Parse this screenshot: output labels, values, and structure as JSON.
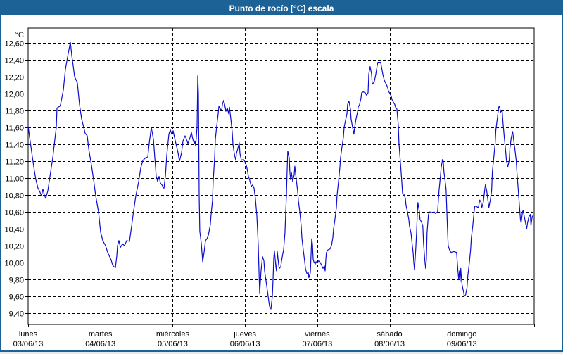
{
  "window": {
    "title": "Punto de rocío [°C] escala"
  },
  "colors": {
    "titlebar_bg": "#1d6296",
    "titlebar_text": "#ffffff",
    "frame_border": "#1d6296",
    "plot_border": "#000000",
    "grid": "#000000",
    "line": "#0d0dce",
    "label": "#000000",
    "background": "#ffffff"
  },
  "chart_data": {
    "type": "line",
    "title": "Punto de rocío [°C] escala",
    "unit_label": "°C",
    "grid": true,
    "x_span_days": 7,
    "ylim": [
      9.27,
      12.78
    ],
    "y_tick_values": [
      12.6,
      12.4,
      12.2,
      12.0,
      11.8,
      11.6,
      11.4,
      11.2,
      11.0,
      10.8,
      10.6,
      10.4,
      10.2,
      10.0,
      9.8,
      9.6,
      9.4
    ],
    "y_tick_labels": [
      "12,60",
      "12,40",
      "12,20",
      "12,00",
      "11,80",
      "11,60",
      "11,40",
      "11,20",
      "11,00",
      "10,80",
      "10,60",
      "10,40",
      "10,20",
      "10,00",
      "9,80",
      "9,60",
      "9,40"
    ],
    "x_categories": [
      {
        "day": "lunes",
        "date": "03/06/13"
      },
      {
        "day": "martes",
        "date": "04/06/13"
      },
      {
        "day": "miércoles",
        "date": "05/06/13"
      },
      {
        "day": "jueves",
        "date": "06/06/13"
      },
      {
        "day": "viernes",
        "date": "07/06/13"
      },
      {
        "day": "sábado",
        "date": "08/06/13"
      },
      {
        "day": "domingo",
        "date": "09/06/13"
      }
    ],
    "points": [
      [
        0.0,
        11.62
      ],
      [
        0.01,
        11.55
      ],
      [
        0.029,
        11.43
      ],
      [
        0.058,
        11.25
      ],
      [
        0.088,
        11.08
      ],
      [
        0.107,
        10.98
      ],
      [
        0.136,
        10.88
      ],
      [
        0.156,
        10.85
      ],
      [
        0.185,
        10.79
      ],
      [
        0.204,
        10.87
      ],
      [
        0.224,
        10.8
      ],
      [
        0.243,
        10.76
      ],
      [
        0.273,
        10.85
      ],
      [
        0.302,
        11.02
      ],
      [
        0.341,
        11.24
      ],
      [
        0.37,
        11.46
      ],
      [
        0.389,
        11.6
      ],
      [
        0.399,
        11.83
      ],
      [
        0.438,
        11.85
      ],
      [
        0.448,
        11.87
      ],
      [
        0.487,
        12.04
      ],
      [
        0.516,
        12.29
      ],
      [
        0.545,
        12.43
      ],
      [
        0.565,
        12.52
      ],
      [
        0.584,
        12.61
      ],
      [
        0.604,
        12.45
      ],
      [
        0.623,
        12.33
      ],
      [
        0.643,
        12.2
      ],
      [
        0.681,
        12.13
      ],
      [
        0.711,
        11.87
      ],
      [
        0.74,
        11.7
      ],
      [
        0.769,
        11.6
      ],
      [
        0.789,
        11.53
      ],
      [
        0.818,
        11.5
      ],
      [
        0.837,
        11.35
      ],
      [
        0.876,
        11.15
      ],
      [
        0.905,
        10.98
      ],
      [
        0.935,
        10.79
      ],
      [
        0.974,
        10.6
      ],
      [
        1.003,
        10.36
      ],
      [
        1.032,
        10.26
      ],
      [
        1.071,
        10.2
      ],
      [
        1.1,
        10.12
      ],
      [
        1.149,
        10.03
      ],
      [
        1.168,
        9.97
      ],
      [
        1.188,
        9.95
      ],
      [
        1.207,
        9.94
      ],
      [
        1.227,
        10.08
      ],
      [
        1.236,
        10.2
      ],
      [
        1.256,
        10.26
      ],
      [
        1.276,
        10.18
      ],
      [
        1.305,
        10.22
      ],
      [
        1.334,
        10.2
      ],
      [
        1.363,
        10.26
      ],
      [
        1.402,
        10.25
      ],
      [
        1.431,
        10.43
      ],
      [
        1.46,
        10.62
      ],
      [
        1.49,
        10.79
      ],
      [
        1.529,
        10.96
      ],
      [
        1.558,
        11.12
      ],
      [
        1.587,
        11.21
      ],
      [
        1.626,
        11.24
      ],
      [
        1.655,
        11.25
      ],
      [
        1.675,
        11.41
      ],
      [
        1.704,
        11.6
      ],
      [
        1.733,
        11.46
      ],
      [
        1.752,
        11.24
      ],
      [
        1.772,
        11.02
      ],
      [
        1.791,
        10.96
      ],
      [
        1.811,
        11.02
      ],
      [
        1.83,
        10.94
      ],
      [
        1.85,
        10.92
      ],
      [
        1.879,
        10.88
      ],
      [
        1.898,
        11.02
      ],
      [
        1.918,
        11.27
      ],
      [
        1.947,
        11.52
      ],
      [
        1.967,
        11.57
      ],
      [
        1.986,
        11.52
      ],
      [
        2.006,
        11.56
      ],
      [
        2.025,
        11.48
      ],
      [
        2.044,
        11.41
      ],
      [
        2.074,
        11.3
      ],
      [
        2.093,
        11.2
      ],
      [
        2.122,
        11.3
      ],
      [
        2.142,
        11.44
      ],
      [
        2.171,
        11.5
      ],
      [
        2.19,
        11.46
      ],
      [
        2.21,
        11.41
      ],
      [
        2.239,
        11.48
      ],
      [
        2.259,
        11.54
      ],
      [
        2.278,
        11.46
      ],
      [
        2.298,
        11.41
      ],
      [
        2.307,
        11.44
      ],
      [
        2.317,
        11.38
      ],
      [
        2.337,
        11.6
      ],
      [
        2.346,
        12.21
      ],
      [
        2.356,
        12.0
      ],
      [
        2.366,
        10.8
      ],
      [
        2.375,
        10.37
      ],
      [
        2.395,
        10.23
      ],
      [
        2.414,
        10.01
      ],
      [
        2.434,
        10.12
      ],
      [
        2.453,
        10.26
      ],
      [
        2.473,
        10.28
      ],
      [
        2.492,
        10.32
      ],
      [
        2.521,
        10.45
      ],
      [
        2.531,
        10.57
      ],
      [
        2.551,
        10.74
      ],
      [
        2.56,
        10.96
      ],
      [
        2.58,
        11.24
      ],
      [
        2.59,
        11.46
      ],
      [
        2.609,
        11.62
      ],
      [
        2.629,
        11.76
      ],
      [
        2.638,
        11.85
      ],
      [
        2.658,
        11.82
      ],
      [
        2.677,
        11.8
      ],
      [
        2.687,
        11.87
      ],
      [
        2.706,
        11.92
      ],
      [
        2.726,
        11.84
      ],
      [
        2.736,
        11.79
      ],
      [
        2.755,
        11.83
      ],
      [
        2.775,
        11.76
      ],
      [
        2.784,
        11.84
      ],
      [
        2.804,
        11.7
      ],
      [
        2.823,
        11.54
      ],
      [
        2.833,
        11.4
      ],
      [
        2.852,
        11.29
      ],
      [
        2.872,
        11.21
      ],
      [
        2.881,
        11.29
      ],
      [
        2.901,
        11.35
      ],
      [
        2.92,
        11.42
      ],
      [
        2.93,
        11.29
      ],
      [
        2.95,
        11.21
      ],
      [
        2.979,
        11.22
      ],
      [
        3.008,
        11.18
      ],
      [
        3.027,
        11.12
      ],
      [
        3.047,
        11.02
      ],
      [
        3.067,
        10.97
      ],
      [
        3.086,
        10.9
      ],
      [
        3.106,
        10.92
      ],
      [
        3.125,
        10.88
      ],
      [
        3.145,
        10.75
      ],
      [
        3.164,
        10.55
      ],
      [
        3.184,
        10.2
      ],
      [
        3.193,
        9.9
      ],
      [
        3.203,
        9.63
      ],
      [
        3.222,
        9.9
      ],
      [
        3.242,
        10.07
      ],
      [
        3.261,
        10.02
      ],
      [
        3.271,
        9.9
      ],
      [
        3.29,
        9.79
      ],
      [
        3.32,
        9.6
      ],
      [
        3.339,
        9.48
      ],
      [
        3.359,
        9.45
      ],
      [
        3.378,
        9.6
      ],
      [
        3.388,
        9.8
      ],
      [
        3.398,
        10.05
      ],
      [
        3.407,
        10.14
      ],
      [
        3.427,
        9.95
      ],
      [
        3.436,
        9.9
      ],
      [
        3.446,
        10.13
      ],
      [
        3.466,
        9.97
      ],
      [
        3.475,
        9.93
      ],
      [
        3.495,
        9.95
      ],
      [
        3.504,
        10.01
      ],
      [
        3.524,
        10.11
      ],
      [
        3.534,
        10.15
      ],
      [
        3.553,
        10.35
      ],
      [
        3.563,
        10.6
      ],
      [
        3.573,
        10.8
      ],
      [
        3.582,
        11.07
      ],
      [
        3.592,
        11.32
      ],
      [
        3.612,
        11.24
      ],
      [
        3.621,
        11.07
      ],
      [
        3.631,
        10.98
      ],
      [
        3.641,
        11.07
      ],
      [
        3.66,
        10.96
      ],
      [
        3.68,
        11.04
      ],
      [
        3.689,
        11.14
      ],
      [
        3.709,
        10.98
      ],
      [
        3.728,
        10.85
      ],
      [
        3.738,
        10.74
      ],
      [
        3.758,
        10.6
      ],
      [
        3.777,
        10.43
      ],
      [
        3.787,
        10.29
      ],
      [
        3.806,
        10.15
      ],
      [
        3.826,
        10.01
      ],
      [
        3.836,
        9.93
      ],
      [
        3.855,
        9.87
      ],
      [
        3.875,
        9.88
      ],
      [
        3.884,
        9.82
      ],
      [
        3.904,
        9.88
      ],
      [
        3.923,
        10.28
      ],
      [
        3.933,
        10.22
      ],
      [
        3.943,
        10.04
      ],
      [
        3.952,
        10.01
      ],
      [
        3.972,
        9.98
      ],
      [
        3.981,
        10.01
      ],
      [
        4.001,
        10.0
      ],
      [
        4.02,
        10.02
      ],
      [
        4.04,
        10.0
      ],
      [
        4.059,
        9.97
      ],
      [
        4.079,
        9.93
      ],
      [
        4.098,
        9.96
      ],
      [
        4.108,
        9.9
      ],
      [
        4.118,
        10.04
      ],
      [
        4.127,
        10.12
      ],
      [
        4.147,
        10.15
      ],
      [
        4.176,
        10.16
      ],
      [
        4.196,
        10.2
      ],
      [
        4.215,
        10.29
      ],
      [
        4.225,
        10.4
      ],
      [
        4.244,
        10.51
      ],
      [
        4.264,
        10.65
      ],
      [
        4.273,
        10.79
      ],
      [
        4.293,
        10.96
      ],
      [
        4.312,
        11.12
      ],
      [
        4.322,
        11.24
      ],
      [
        4.342,
        11.37
      ],
      [
        4.361,
        11.48
      ],
      [
        4.371,
        11.6
      ],
      [
        4.39,
        11.68
      ],
      [
        4.41,
        11.76
      ],
      [
        4.419,
        11.87
      ],
      [
        4.439,
        11.91
      ],
      [
        4.458,
        11.82
      ],
      [
        4.468,
        11.7
      ],
      [
        4.488,
        11.6
      ],
      [
        4.507,
        11.52
      ],
      [
        4.517,
        11.6
      ],
      [
        4.536,
        11.7
      ],
      [
        4.556,
        11.78
      ],
      [
        4.566,
        11.84
      ],
      [
        4.585,
        11.87
      ],
      [
        4.605,
        11.95
      ],
      [
        4.614,
        12.01
      ],
      [
        4.634,
        12.02
      ],
      [
        4.663,
        12.01
      ],
      [
        4.682,
        11.98
      ],
      [
        4.702,
        12.01
      ],
      [
        4.712,
        12.23
      ],
      [
        4.731,
        12.32
      ],
      [
        4.751,
        12.23
      ],
      [
        4.76,
        12.11
      ],
      [
        4.78,
        12.13
      ],
      [
        4.79,
        12.15
      ],
      [
        4.809,
        12.23
      ],
      [
        4.828,
        12.33
      ],
      [
        4.838,
        12.37
      ],
      [
        4.877,
        12.37
      ],
      [
        4.887,
        12.32
      ],
      [
        4.906,
        12.23
      ],
      [
        4.926,
        12.16
      ],
      [
        4.936,
        12.14
      ],
      [
        4.955,
        12.11
      ],
      [
        4.974,
        12.07
      ],
      [
        4.984,
        12.03
      ],
      [
        5.004,
        12.0
      ],
      [
        5.023,
        11.97
      ],
      [
        5.033,
        11.93
      ],
      [
        5.052,
        11.9
      ],
      [
        5.072,
        11.87
      ],
      [
        5.082,
        11.84
      ],
      [
        5.101,
        11.82
      ],
      [
        5.121,
        11.62
      ],
      [
        5.13,
        11.41
      ],
      [
        5.15,
        11.18
      ],
      [
        5.169,
        10.96
      ],
      [
        5.179,
        10.82
      ],
      [
        5.198,
        10.81
      ],
      [
        5.218,
        10.76
      ],
      [
        5.227,
        10.68
      ],
      [
        5.247,
        10.6
      ],
      [
        5.266,
        10.51
      ],
      [
        5.276,
        10.43
      ],
      [
        5.296,
        10.35
      ],
      [
        5.315,
        10.2
      ],
      [
        5.325,
        10.12
      ],
      [
        5.334,
        10.01
      ],
      [
        5.344,
        9.92
      ],
      [
        5.354,
        10.04
      ],
      [
        5.363,
        10.18
      ],
      [
        5.373,
        10.35
      ],
      [
        5.383,
        10.57
      ],
      [
        5.392,
        10.71
      ],
      [
        5.412,
        10.6
      ],
      [
        5.421,
        10.51
      ],
      [
        5.441,
        10.48
      ],
      [
        5.46,
        10.43
      ],
      [
        5.47,
        10.23
      ],
      [
        5.489,
        10.01
      ],
      [
        5.499,
        9.93
      ],
      [
        5.509,
        10.04
      ],
      [
        5.518,
        10.35
      ],
      [
        5.538,
        10.57
      ],
      [
        5.557,
        10.6
      ],
      [
        5.587,
        10.59
      ],
      [
        5.616,
        10.6
      ],
      [
        5.635,
        10.58
      ],
      [
        5.664,
        10.6
      ],
      [
        5.684,
        10.85
      ],
      [
        5.703,
        11.02
      ],
      [
        5.713,
        11.12
      ],
      [
        5.732,
        11.22
      ],
      [
        5.742,
        11.2
      ],
      [
        5.752,
        11.07
      ],
      [
        5.761,
        11.02
      ],
      [
        5.781,
        10.87
      ],
      [
        5.8,
        10.43
      ],
      [
        5.81,
        10.2
      ],
      [
        5.829,
        10.15
      ],
      [
        5.849,
        10.12
      ],
      [
        5.888,
        10.13
      ],
      [
        5.927,
        10.12
      ],
      [
        5.946,
        9.9
      ],
      [
        5.956,
        9.8
      ],
      [
        5.966,
        9.9
      ],
      [
        5.975,
        9.77
      ],
      [
        5.985,
        9.93
      ],
      [
        5.995,
        9.8
      ],
      [
        6.004,
        9.73
      ],
      [
        6.024,
        9.65
      ],
      [
        6.033,
        9.6
      ],
      [
        6.053,
        9.62
      ],
      [
        6.072,
        9.71
      ],
      [
        6.082,
        9.84
      ],
      [
        6.101,
        9.98
      ],
      [
        6.121,
        10.15
      ],
      [
        6.131,
        10.29
      ],
      [
        6.15,
        10.43
      ],
      [
        6.17,
        10.6
      ],
      [
        6.179,
        10.67
      ],
      [
        6.208,
        10.66
      ],
      [
        6.228,
        10.65
      ],
      [
        6.247,
        10.74
      ],
      [
        6.267,
        10.71
      ],
      [
        6.276,
        10.65
      ],
      [
        6.296,
        10.71
      ],
      [
        6.315,
        10.85
      ],
      [
        6.325,
        10.92
      ],
      [
        6.344,
        10.85
      ],
      [
        6.364,
        10.71
      ],
      [
        6.373,
        10.65
      ],
      [
        6.393,
        10.74
      ],
      [
        6.412,
        10.85
      ],
      [
        6.422,
        11.07
      ],
      [
        6.441,
        11.24
      ],
      [
        6.461,
        11.41
      ],
      [
        6.47,
        11.57
      ],
      [
        6.49,
        11.7
      ],
      [
        6.509,
        11.84
      ],
      [
        6.519,
        11.85
      ],
      [
        6.538,
        11.78
      ],
      [
        6.558,
        11.8
      ],
      [
        6.567,
        11.68
      ],
      [
        6.587,
        11.48
      ],
      [
        6.606,
        11.32
      ],
      [
        6.616,
        11.21
      ],
      [
        6.635,
        11.13
      ],
      [
        6.655,
        11.21
      ],
      [
        6.664,
        11.35
      ],
      [
        6.684,
        11.48
      ],
      [
        6.703,
        11.55
      ],
      [
        6.713,
        11.48
      ],
      [
        6.732,
        11.35
      ],
      [
        6.752,
        11.21
      ],
      [
        6.761,
        11.07
      ],
      [
        6.781,
        10.85
      ],
      [
        6.8,
        10.62
      ],
      [
        6.81,
        10.51
      ],
      [
        6.82,
        10.47
      ],
      [
        6.839,
        10.6
      ],
      [
        6.849,
        10.62
      ],
      [
        6.858,
        10.57
      ],
      [
        6.878,
        10.48
      ],
      [
        6.897,
        10.4
      ],
      [
        6.907,
        10.46
      ],
      [
        6.926,
        10.54
      ],
      [
        6.946,
        10.57
      ],
      [
        6.955,
        10.44
      ],
      [
        6.975,
        10.55
      ]
    ]
  }
}
